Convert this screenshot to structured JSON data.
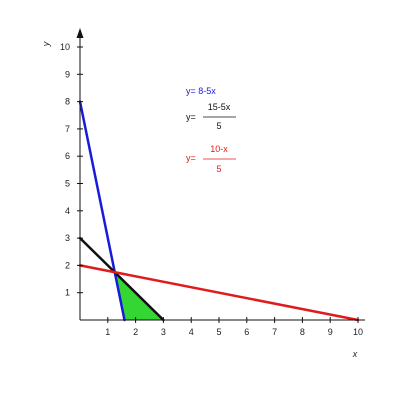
{
  "chart_data": {
    "type": "line",
    "xlabel": "x",
    "ylabel": "y",
    "xlim": [
      0,
      10
    ],
    "ylim": [
      0,
      10
    ],
    "x_ticks": [
      "1",
      "2",
      "3",
      "4",
      "5",
      "6",
      "7",
      "8",
      "9",
      "10"
    ],
    "y_ticks": [
      "1",
      "2",
      "3",
      "4",
      "5",
      "6",
      "7",
      "8",
      "9",
      "10"
    ],
    "grid": false,
    "series": [
      {
        "name": "y= 8-5x",
        "color": "#1a1adb",
        "points": [
          [
            0,
            8
          ],
          [
            1.6,
            0
          ]
        ]
      },
      {
        "name": "y= (15-5x)/5",
        "color": "#111111",
        "points": [
          [
            0,
            3
          ],
          [
            3,
            0
          ]
        ]
      },
      {
        "name": "y= (10-x)/5",
        "color": "#e01b1b",
        "points": [
          [
            0,
            2
          ],
          [
            10,
            0
          ]
        ]
      }
    ],
    "shaded_region": {
      "color": "#33d633",
      "vertices": [
        [
          1.25,
          1.75
        ],
        [
          1.6,
          0
        ],
        [
          3,
          0
        ]
      ]
    },
    "legend": {
      "placement": "top-center",
      "blue": {
        "text": "y= 8-5x",
        "color": "#1a1adb"
      },
      "black": {
        "prefix": "y=",
        "numerator": "15-5x",
        "denominator": "5",
        "color": "#111111"
      },
      "red": {
        "prefix": "y=",
        "numerator": "10-x",
        "denominator": "5",
        "color": "#e01b1b"
      }
    }
  }
}
